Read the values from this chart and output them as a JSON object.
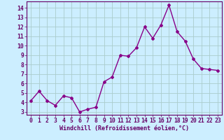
{
  "x": [
    0,
    1,
    2,
    3,
    4,
    5,
    6,
    7,
    8,
    9,
    10,
    11,
    12,
    13,
    14,
    15,
    16,
    17,
    18,
    19,
    20,
    21,
    22,
    23
  ],
  "y": [
    4.2,
    5.2,
    4.2,
    3.7,
    4.7,
    4.5,
    3.0,
    3.3,
    3.5,
    6.2,
    6.7,
    9.0,
    8.9,
    9.8,
    12.0,
    10.8,
    12.2,
    14.3,
    11.5,
    10.5,
    8.6,
    7.6,
    7.5,
    7.4
  ],
  "line_color": "#880088",
  "marker": "D",
  "marker_size": 2.0,
  "bg_color": "#cceeff",
  "grid_color": "#aacccc",
  "xlabel": "Windchill (Refroidissement éolien,°C)",
  "xlabel_fontsize": 6.0,
  "ylim": [
    2.7,
    14.7
  ],
  "xlim": [
    -0.5,
    23.5
  ],
  "yticks": [
    3,
    4,
    5,
    6,
    7,
    8,
    9,
    10,
    11,
    12,
    13,
    14
  ],
  "xticks": [
    0,
    1,
    2,
    3,
    4,
    5,
    6,
    7,
    8,
    9,
    10,
    11,
    12,
    13,
    14,
    15,
    16,
    17,
    18,
    19,
    20,
    21,
    22,
    23
  ],
  "tick_fontsize": 5.8,
  "spine_color": "#660066",
  "tick_color": "#660066",
  "linewidth": 1.0
}
